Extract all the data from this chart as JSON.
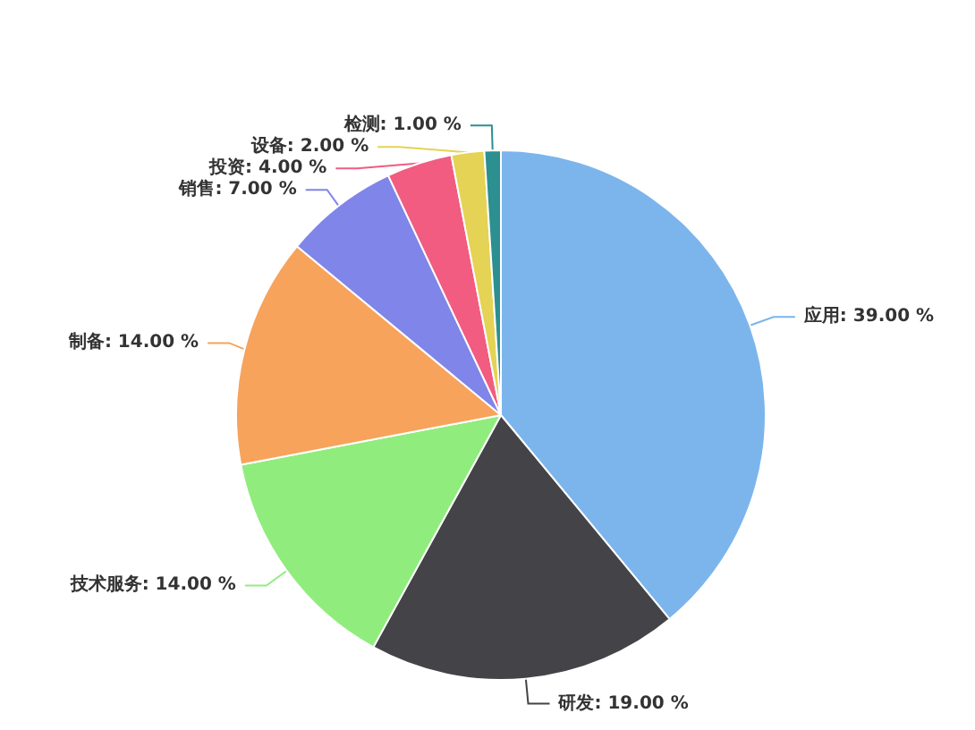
{
  "chart_data": {
    "type": "pie",
    "categories": [
      "应用",
      "研发",
      "技术服务",
      "制备",
      "销售",
      "投资",
      "设备",
      "检测"
    ],
    "values": [
      39,
      19,
      14,
      14,
      7,
      4,
      2,
      1
    ],
    "value_labels": [
      "39.00 %",
      "19.00 %",
      "14.00 %",
      "14.00 %",
      "7.00 %",
      "4.00 %",
      "2.00 %",
      "1.00 %"
    ],
    "colors": [
      "#7cb5ec",
      "#434348",
      "#90ed7d",
      "#f7a35c",
      "#8085e9",
      "#f15c80",
      "#e4d354",
      "#2b908f"
    ],
    "legend": false
  }
}
